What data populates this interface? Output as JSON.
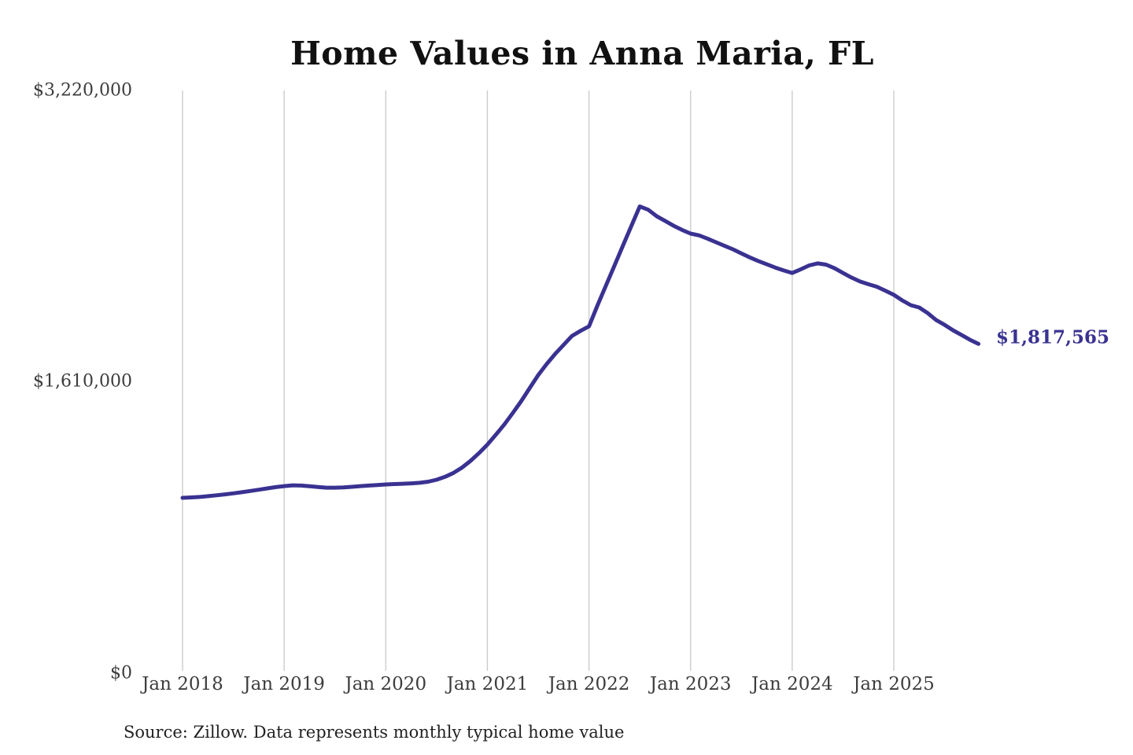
{
  "title": "Home Values in Anna Maria, FL",
  "source_note": "Source: Zillow. Data represents monthly typical home value",
  "chart_data": {
    "type": "line",
    "title": "Home Values in Anna Maria, FL",
    "xlabel": "",
    "ylabel": "",
    "frequency": "monthly",
    "x_start": "Jan 2018",
    "x_end": "Nov 2025",
    "x_ticks": [
      "Jan 2018",
      "Jan 2019",
      "Jan 2020",
      "Jan 2021",
      "Jan 2022",
      "Jan 2023",
      "Jan 2024",
      "Jan 2025"
    ],
    "y_ticks": [
      {
        "label": "$3,220,000",
        "value": 3220000
      },
      {
        "label": "$1,610,000",
        "value": 1610000
      },
      {
        "label": "$0",
        "value": 0
      }
    ],
    "ylim": [
      0,
      3220000
    ],
    "grid": "vertical-only",
    "legend": "none",
    "line_color": "#3a3291",
    "grid_color": "#cccccc",
    "end_label": "$1,817,565",
    "final_value": 1817565,
    "values": [
      966000,
      968000,
      971000,
      975000,
      980000,
      985000,
      991000,
      997000,
      1004000,
      1011000,
      1018000,
      1025000,
      1031000,
      1035000,
      1034000,
      1030000,
      1026000,
      1022000,
      1022000,
      1024000,
      1027000,
      1031000,
      1034000,
      1037000,
      1040000,
      1042000,
      1044000,
      1046000,
      1049000,
      1055000,
      1066000,
      1082000,
      1104000,
      1133000,
      1170000,
      1213000,
      1260000,
      1315000,
      1372000,
      1435000,
      1501000,
      1573000,
      1645000,
      1706000,
      1762000,
      1812000,
      1862000,
      1890000,
      1915000,
      2030000,
      2140000,
      2250000,
      2360000,
      2470000,
      2578000,
      2560000,
      2524000,
      2498000,
      2471000,
      2448000,
      2428000,
      2418000,
      2400000,
      2380000,
      2360000,
      2341000,
      2318000,
      2296000,
      2276000,
      2258000,
      2240000,
      2224000,
      2210000,
      2230000,
      2252000,
      2263000,
      2256000,
      2236000,
      2210000,
      2185000,
      2163000,
      2148000,
      2134000,
      2112000,
      2089000,
      2058000,
      2032000,
      2019000,
      1988000,
      1950000,
      1923000,
      1893000,
      1867000,
      1840000,
      1817565
    ]
  }
}
